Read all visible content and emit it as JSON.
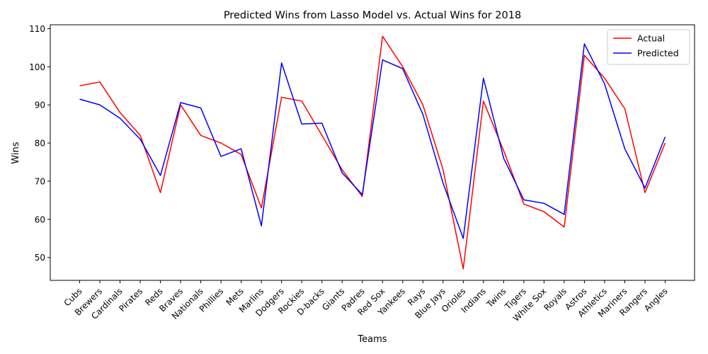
{
  "chart_data": {
    "type": "line",
    "title": "Predicted Wins from Lasso Model vs. Actual Wins for 2018",
    "xlabel": "Teams",
    "ylabel": "Wins",
    "ylim": [
      44,
      111
    ],
    "yticks": [
      50,
      60,
      70,
      80,
      90,
      100,
      110
    ],
    "grid": false,
    "legend_position": "top-right",
    "categories": [
      "Cubs",
      "Brewers",
      "Cardinals",
      "Pirates",
      "Reds",
      "Braves",
      "Nationals",
      "Phillies",
      "Mets",
      "Marlins",
      "Dodgers",
      "Rockies",
      "D-backs",
      "Giants",
      "Padres",
      "Red Sox",
      "Yankees",
      "Rays",
      "Blue Jays",
      "Orioles",
      "Indians",
      "Twins",
      "Tigers",
      "White Sox",
      "Royals",
      "Astros",
      "Athletics",
      "Mariners",
      "Rangers",
      "Angles"
    ],
    "series": [
      {
        "name": "Actual",
        "color": "#ff0000",
        "values": [
          95,
          96,
          88,
          82,
          67,
          90,
          82,
          80,
          77,
          63,
          92,
          91,
          82,
          73,
          66,
          108,
          100,
          90,
          73,
          47,
          91,
          78,
          64,
          62,
          58,
          103,
          97,
          89,
          67,
          80
        ]
      },
      {
        "name": "Predicted",
        "color": "#0000ff",
        "values": [
          91.5,
          90,
          86.5,
          81,
          71.5,
          90.6,
          89.2,
          76.5,
          78.5,
          58.3,
          101,
          85,
          85.2,
          72.2,
          66.5,
          101.8,
          99.5,
          87.5,
          69.5,
          55,
          97,
          76,
          65.1,
          64.2,
          61.3,
          106,
          95.5,
          78.5,
          68.2,
          81.6
        ]
      }
    ]
  }
}
